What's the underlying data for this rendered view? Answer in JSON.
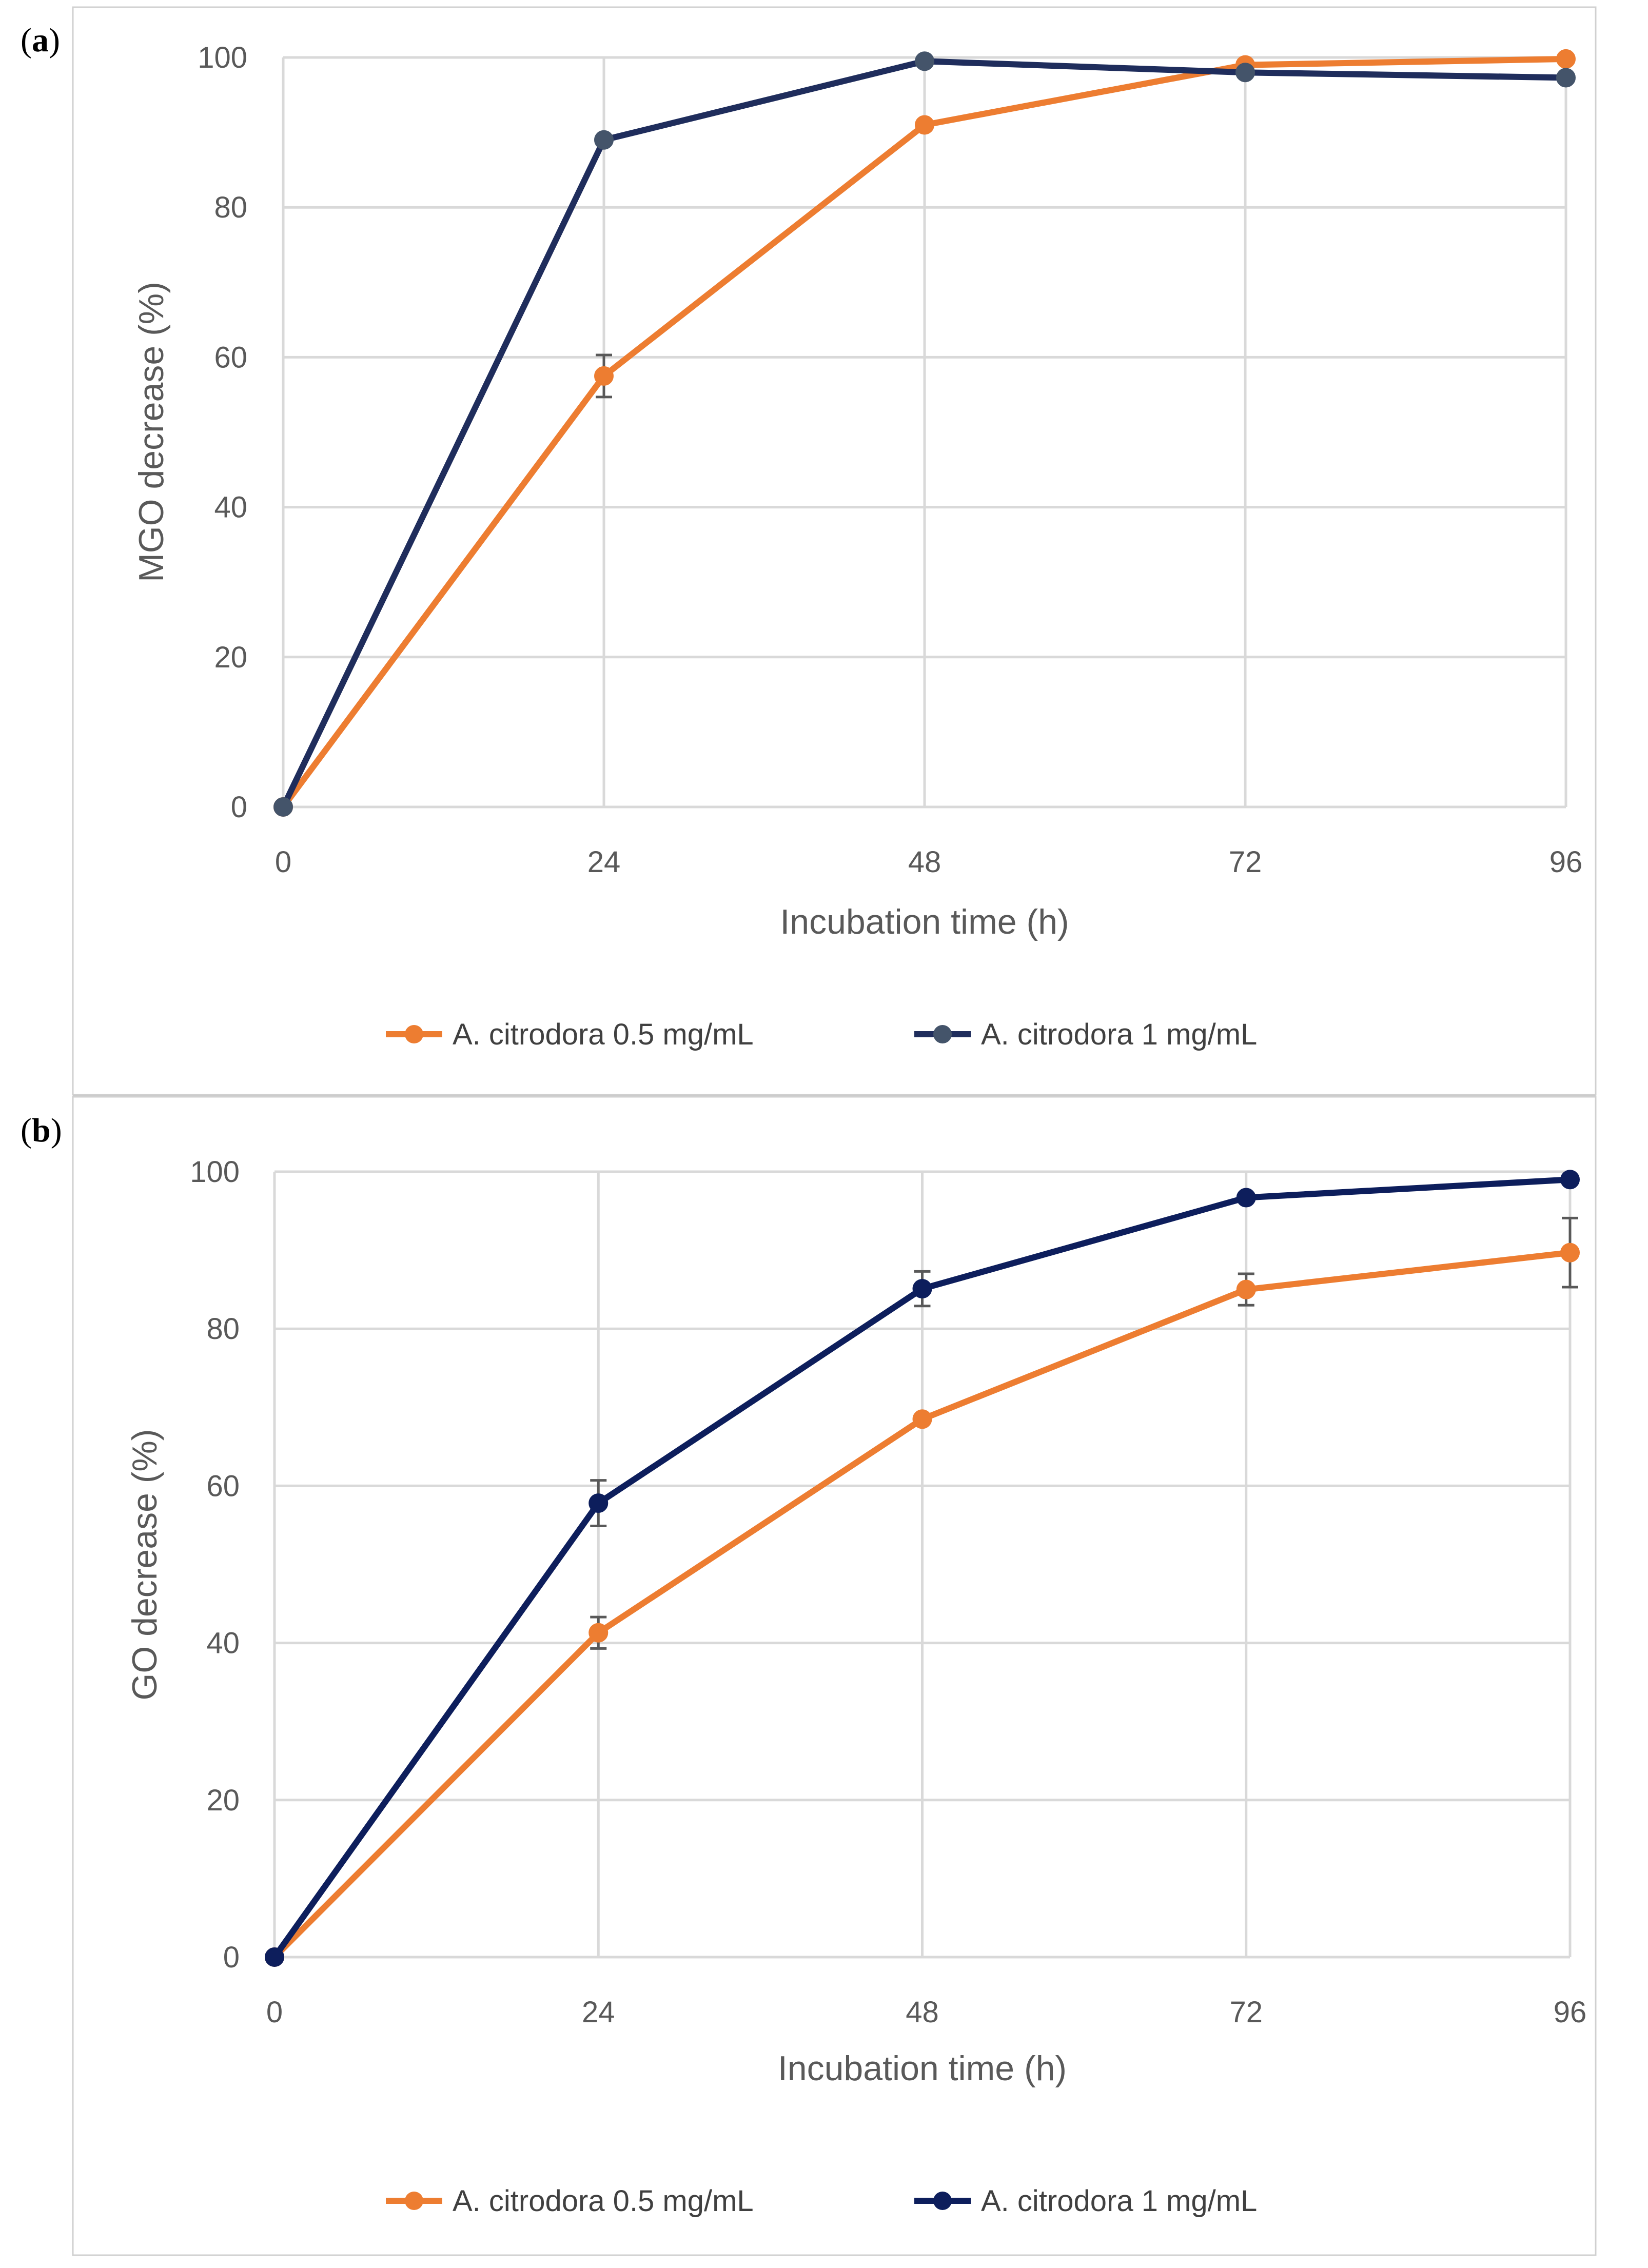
{
  "figure": {
    "panels": [
      {
        "letter": "a"
      },
      {
        "letter": "b"
      }
    ]
  },
  "chart_data": [
    {
      "type": "line",
      "panel": "a",
      "title": "",
      "xlabel": "Incubation time (h)",
      "ylabel": "MGO decrease (%)",
      "x": [
        0,
        24,
        48,
        72,
        96
      ],
      "xticks": [
        "0",
        "24",
        "48",
        "72",
        "96"
      ],
      "yticks": [
        "0",
        "20",
        "40",
        "60",
        "80",
        "100"
      ],
      "ylim": [
        0,
        100
      ],
      "grid": true,
      "legend_position": "bottom",
      "series": [
        {
          "name": "A. citrodora 0.5 mg/mL",
          "color": "#ED7D31",
          "values": [
            0,
            57.5,
            91,
            99,
            99.8
          ],
          "errors": [
            0,
            2.8,
            0,
            0,
            0
          ]
        },
        {
          "name": "A. citrodora 1 mg/mL",
          "color": "#1F2D5C",
          "marker_color": "#44546A",
          "values": [
            0,
            89,
            99.5,
            98,
            97.3
          ],
          "errors": [
            0,
            0,
            0,
            0,
            0
          ]
        }
      ]
    },
    {
      "type": "line",
      "panel": "b",
      "title": "",
      "xlabel": "Incubation time (h)",
      "ylabel": "GO decrease (%)",
      "x": [
        0,
        24,
        48,
        72,
        96
      ],
      "xticks": [
        "0",
        "24",
        "48",
        "72",
        "96"
      ],
      "yticks": [
        "0",
        "20",
        "40",
        "60",
        "80",
        "100"
      ],
      "ylim": [
        0,
        100
      ],
      "grid": true,
      "legend_position": "bottom",
      "series": [
        {
          "name": "A. citrodora 0.5 mg/mL",
          "color": "#ED7D31",
          "values": [
            0,
            41.3,
            68.5,
            85,
            89.7
          ],
          "errors": [
            0,
            2,
            0,
            2,
            4.4
          ]
        },
        {
          "name": "A. citrodora 1 mg/mL",
          "color": "#0D1E5C",
          "marker_color": "#0D1E5C",
          "values": [
            0,
            57.8,
            85.1,
            96.7,
            99
          ],
          "errors": [
            0,
            2.9,
            2.2,
            0,
            0
          ]
        }
      ]
    }
  ]
}
